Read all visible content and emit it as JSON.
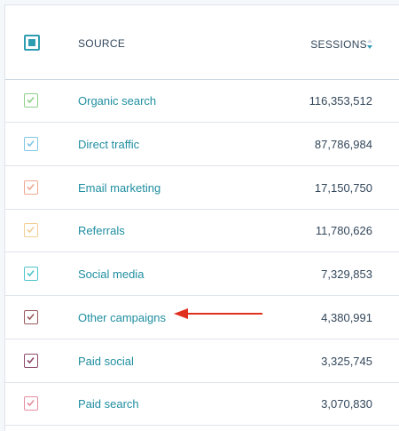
{
  "table": {
    "headers": {
      "source": "SOURCE",
      "sessions": "SESSIONS"
    },
    "sort_icon": "sort-descending-icon",
    "accent_color": "#2f9db1",
    "link_color": "#1f8ea0",
    "rows": [
      {
        "label": "Organic search",
        "sessions": "116,353,512",
        "checked": true,
        "check_color": "#8fd08a"
      },
      {
        "label": "Direct traffic",
        "sessions": "87,786,984",
        "checked": true,
        "check_color": "#7fc6e3"
      },
      {
        "label": "Email marketing",
        "sessions": "17,150,750",
        "checked": true,
        "check_color": "#f0a88f"
      },
      {
        "label": "Referrals",
        "sessions": "11,780,626",
        "checked": true,
        "check_color": "#f2cf96"
      },
      {
        "label": "Social media",
        "sessions": "7,329,853",
        "checked": true,
        "check_color": "#4fc5cc"
      },
      {
        "label": "Other campaigns",
        "sessions": "4,380,991",
        "checked": true,
        "check_color": "#9a5b5e"
      },
      {
        "label": "Paid social",
        "sessions": "3,325,745",
        "checked": true,
        "check_color": "#8e4a6a"
      },
      {
        "label": "Paid search",
        "sessions": "3,070,830",
        "checked": true,
        "check_color": "#e88da0"
      }
    ]
  },
  "annotation": {
    "icon": "red-arrow-icon",
    "color": "#e0301e",
    "points_to": "Other campaigns"
  }
}
